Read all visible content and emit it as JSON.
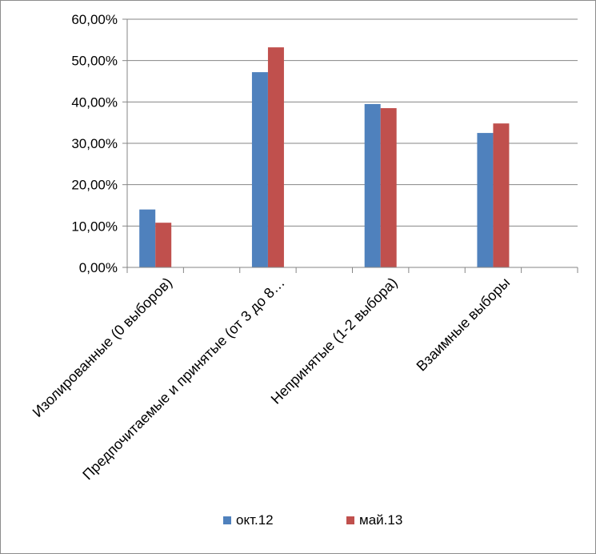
{
  "chart_data": {
    "type": "bar",
    "categories": [
      "Изолированные (0 выборов)",
      "Предпочитаемые и принятые (от 3 до 8…",
      "Непринятые (1-2 выбора)",
      "Взаимные выборы"
    ],
    "series": [
      {
        "name": "окт.12",
        "color": "#4f81bd",
        "values": [
          14.0,
          47.2,
          39.5,
          32.5
        ]
      },
      {
        "name": "май.13",
        "color": "#c0504d",
        "values": [
          10.8,
          53.2,
          38.5,
          34.8
        ]
      }
    ],
    "y_ticks": [
      "0,00%",
      "10,00%",
      "20,00%",
      "30,00%",
      "40,00%",
      "50,00%",
      "60,00%"
    ],
    "ylim": [
      0,
      60
    ],
    "grid": true,
    "legend_position": "bottom"
  }
}
